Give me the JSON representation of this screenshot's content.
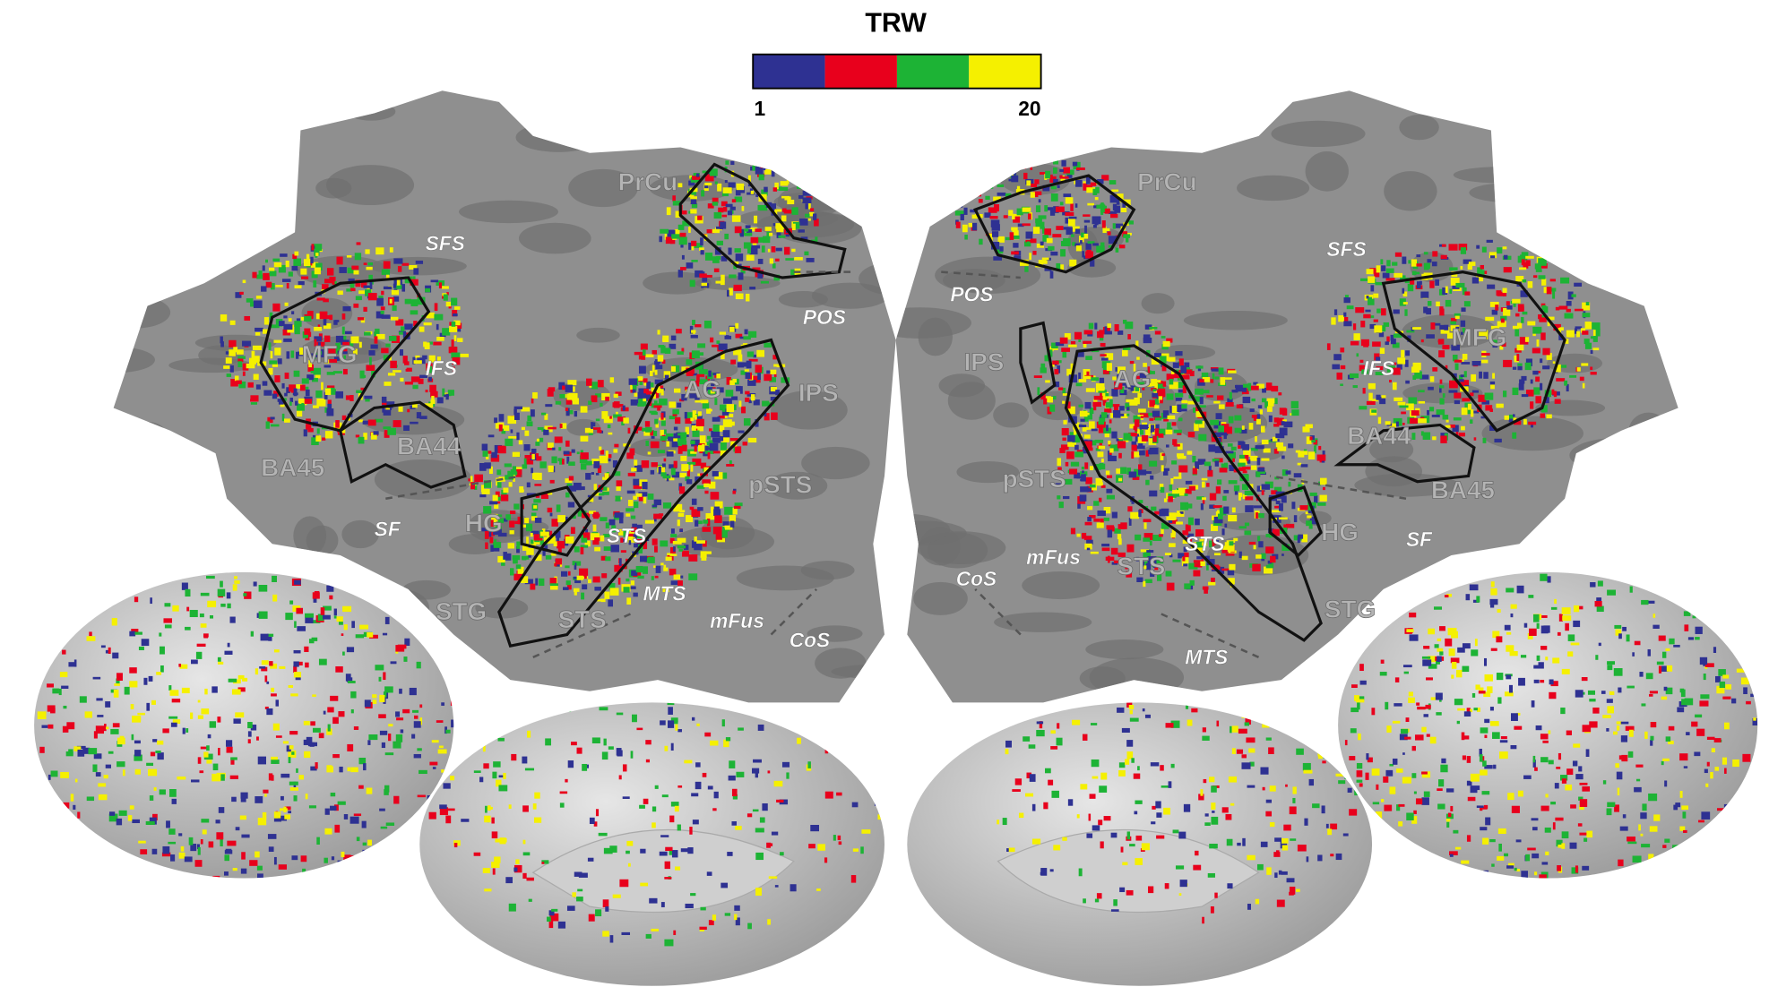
{
  "colorbar": {
    "title": "TRW",
    "min": 1,
    "max": 20,
    "colors": [
      "#2e3192",
      "#e8001c",
      "#1db335",
      "#f5f000"
    ]
  },
  "left_hemisphere": {
    "labels": [
      "PrCu",
      "SFS",
      "MFG",
      "IFS",
      "BA44",
      "BA45",
      "SF",
      "HG",
      "STS",
      "STG",
      "STS",
      "MTS",
      "mFus",
      "CoS",
      "pSTS",
      "IPS",
      "AG",
      "POS"
    ]
  },
  "right_hemisphere": {
    "labels": [
      "PrCu",
      "SFS",
      "POS",
      "IPS",
      "AG",
      "MFG",
      "IFS",
      "BA44",
      "BA45",
      "SF",
      "HG",
      "pSTS",
      "STS",
      "STS",
      "mFus",
      "CoS",
      "STG",
      "MTS"
    ]
  }
}
